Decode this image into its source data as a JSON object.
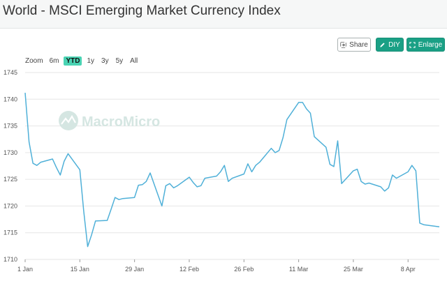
{
  "header": {
    "title": "World - MSCI Emerging Market Currency Index"
  },
  "toolbar": {
    "share_label": "Share",
    "diy_label": "DIY",
    "enlarge_label": "Enlarge"
  },
  "range": {
    "label": "Zoom",
    "options": [
      "6m",
      "YTD",
      "1y",
      "3y",
      "5y",
      "All"
    ],
    "selected": "YTD"
  },
  "watermark": {
    "text": "MacroMicro"
  },
  "chart_data": {
    "type": "line",
    "title": "",
    "xlabel": "",
    "ylabel": "",
    "ylim": [
      1710,
      1745
    ],
    "xlim": [
      "2024-01-01",
      "2024-04-16"
    ],
    "y_ticks": [
      1710,
      1715,
      1720,
      1725,
      1730,
      1735,
      1740,
      1745
    ],
    "x_ticks": [
      {
        "date": "2024-01-01",
        "label": "1 Jan"
      },
      {
        "date": "2024-01-15",
        "label": "15 Jan"
      },
      {
        "date": "2024-01-29",
        "label": "29 Jan"
      },
      {
        "date": "2024-02-12",
        "label": "12 Feb"
      },
      {
        "date": "2024-02-26",
        "label": "26 Feb"
      },
      {
        "date": "2024-03-11",
        "label": "11 Mar"
      },
      {
        "date": "2024-03-25",
        "label": "25 Mar"
      },
      {
        "date": "2024-04-08",
        "label": "8 Apr"
      }
    ],
    "line_color": "#4fb0d8",
    "grid": true,
    "legend": "none",
    "series": [
      {
        "x": [
          "2024-01-01",
          "2024-01-02",
          "2024-01-03",
          "2024-01-04",
          "2024-01-05",
          "2024-01-08",
          "2024-01-09",
          "2024-01-10",
          "2024-01-11",
          "2024-01-12",
          "2024-01-15",
          "2024-01-16",
          "2024-01-17",
          "2024-01-18",
          "2024-01-19",
          "2024-01-22",
          "2024-01-23",
          "2024-01-24",
          "2024-01-25",
          "2024-01-26",
          "2024-01-29",
          "2024-01-30",
          "2024-01-31",
          "2024-02-01",
          "2024-02-02",
          "2024-02-05",
          "2024-02-06",
          "2024-02-07",
          "2024-02-08",
          "2024-02-09",
          "2024-02-12",
          "2024-02-13",
          "2024-02-14",
          "2024-02-15",
          "2024-02-16",
          "2024-02-19",
          "2024-02-20",
          "2024-02-21",
          "2024-02-22",
          "2024-02-23",
          "2024-02-26",
          "2024-02-27",
          "2024-02-28",
          "2024-02-29",
          "2024-03-01",
          "2024-03-04",
          "2024-03-05",
          "2024-03-06",
          "2024-03-07",
          "2024-03-08",
          "2024-03-11",
          "2024-03-12",
          "2024-03-13",
          "2024-03-14",
          "2024-03-15",
          "2024-03-18",
          "2024-03-19",
          "2024-03-20",
          "2024-03-21",
          "2024-03-22",
          "2024-03-25",
          "2024-03-26",
          "2024-03-27",
          "2024-03-28",
          "2024-03-29",
          "2024-04-01",
          "2024-04-02",
          "2024-04-03",
          "2024-04-04",
          "2024-04-05",
          "2024-04-08",
          "2024-04-09",
          "2024-04-10",
          "2024-04-11",
          "2024-04-12",
          "2024-04-15",
          "2024-04-16"
        ],
        "y": [
          1741.2,
          1732.0,
          1728.0,
          1727.6,
          1728.2,
          1728.8,
          1727.2,
          1725.8,
          1728.4,
          1729.8,
          1726.8,
          1719.0,
          1712.4,
          1714.6,
          1717.2,
          1717.3,
          1719.4,
          1721.6,
          1721.2,
          1721.4,
          1721.6,
          1723.9,
          1724.0,
          1724.6,
          1726.2,
          1720.0,
          1723.8,
          1724.2,
          1723.4,
          1723.8,
          1725.4,
          1724.4,
          1723.6,
          1723.8,
          1725.2,
          1725.6,
          1726.4,
          1727.6,
          1724.6,
          1725.2,
          1726.0,
          1727.9,
          1726.4,
          1727.6,
          1728.2,
          1730.8,
          1730.0,
          1730.4,
          1732.8,
          1736.2,
          1739.4,
          1739.4,
          1738.2,
          1737.4,
          1733.0,
          1731.0,
          1727.8,
          1727.4,
          1732.2,
          1724.2,
          1726.6,
          1726.9,
          1724.6,
          1724.1,
          1724.3,
          1723.6,
          1722.8,
          1723.4,
          1725.8,
          1725.2,
          1726.4,
          1727.6,
          1726.6,
          1716.8,
          1716.5,
          1716.2,
          1716.1
        ]
      }
    ]
  }
}
